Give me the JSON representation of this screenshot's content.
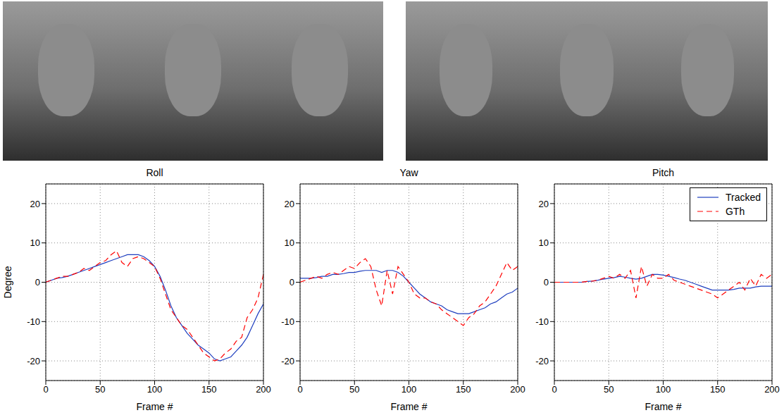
{
  "chart_data": [
    {
      "type": "line",
      "title": "Roll",
      "x_label": "Frame #",
      "y_label": "Degree",
      "x": [
        0,
        5,
        10,
        15,
        20,
        25,
        30,
        35,
        40,
        45,
        50,
        55,
        60,
        65,
        70,
        75,
        80,
        85,
        90,
        95,
        100,
        105,
        110,
        115,
        120,
        125,
        130,
        135,
        140,
        145,
        150,
        155,
        160,
        165,
        170,
        175,
        180,
        185,
        190,
        195,
        200
      ],
      "series": [
        {
          "name": "Tracked",
          "color": "#1f3fbf",
          "line_style": "solid",
          "values": [
            0,
            0.5,
            1,
            1.2,
            1.5,
            2,
            2.5,
            3,
            3.5,
            4,
            4.5,
            5,
            5.5,
            6,
            6.5,
            7,
            7,
            7,
            6.5,
            5.5,
            4,
            1.5,
            -2,
            -6,
            -9,
            -11,
            -13,
            -14.5,
            -16,
            -17,
            -18,
            -19.5,
            -20,
            -19.5,
            -19,
            -17.5,
            -16,
            -14,
            -11,
            -8,
            -5.5
          ]
        },
        {
          "name": "GTh",
          "color": "#ff0000",
          "line_style": "dashed",
          "values": [
            0,
            0.5,
            1,
            1.5,
            1.5,
            2,
            2.5,
            3.5,
            3,
            4,
            5,
            5.5,
            7,
            8,
            5,
            4,
            6,
            6.5,
            6,
            5,
            4,
            1,
            -3,
            -7,
            -9,
            -11,
            -12,
            -14,
            -16,
            -18,
            -19,
            -20,
            -19.5,
            -18,
            -17,
            -15,
            -14,
            -9,
            -7,
            -4,
            2
          ]
        }
      ],
      "xlim": [
        0,
        200
      ],
      "ylim": [
        -25,
        25
      ],
      "xticks": [
        0,
        50,
        100,
        150,
        200
      ],
      "yticks": [
        -20,
        -10,
        0,
        10,
        20
      ],
      "grid": true
    },
    {
      "type": "line",
      "title": "Yaw",
      "x_label": "Frame #",
      "x": [
        0,
        5,
        10,
        15,
        20,
        25,
        30,
        35,
        40,
        45,
        50,
        55,
        60,
        65,
        70,
        75,
        80,
        85,
        90,
        95,
        100,
        105,
        110,
        115,
        120,
        125,
        130,
        135,
        140,
        145,
        150,
        155,
        160,
        165,
        170,
        175,
        180,
        185,
        190,
        195,
        200
      ],
      "series": [
        {
          "name": "Tracked",
          "color": "#1f3fbf",
          "line_style": "solid",
          "values": [
            1,
            1,
            1,
            1.2,
            1.5,
            1.5,
            2,
            2,
            2.2,
            2.5,
            2.5,
            2.8,
            3,
            3,
            3,
            2.5,
            3,
            3,
            2.5,
            1.5,
            0,
            -1.5,
            -3,
            -4,
            -5,
            -5.5,
            -6,
            -7,
            -7.5,
            -8,
            -8,
            -8,
            -7.5,
            -7,
            -6.5,
            -5.5,
            -5,
            -4,
            -3,
            -2.5,
            -1.5
          ]
        },
        {
          "name": "GTh",
          "color": "#ff0000",
          "line_style": "dashed",
          "values": [
            0,
            0.5,
            1,
            1.5,
            1,
            2,
            2.5,
            2,
            3,
            4,
            3.5,
            5,
            6,
            4,
            -2,
            -6,
            3,
            -3,
            4,
            2,
            0,
            -3,
            -4,
            -4,
            -5,
            -5.5,
            -7,
            -8,
            -9,
            -10,
            -11,
            -9,
            -8,
            -6,
            -5,
            -3,
            -1,
            2,
            5,
            3,
            4
          ]
        }
      ],
      "xlim": [
        0,
        200
      ],
      "ylim": [
        -25,
        25
      ],
      "xticks": [
        0,
        50,
        100,
        150,
        200
      ],
      "yticks": [
        -20,
        -10,
        0,
        10,
        20
      ],
      "grid": true
    },
    {
      "type": "line",
      "title": "Pitch",
      "x_label": "Frame #",
      "legend": "upper right",
      "x": [
        0,
        5,
        10,
        15,
        20,
        25,
        30,
        35,
        40,
        45,
        50,
        55,
        60,
        65,
        70,
        75,
        80,
        85,
        90,
        95,
        100,
        105,
        110,
        115,
        120,
        125,
        130,
        135,
        140,
        145,
        150,
        155,
        160,
        165,
        170,
        175,
        180,
        185,
        190,
        195,
        200
      ],
      "series": [
        {
          "name": "Tracked",
          "color": "#1f3fbf",
          "line_style": "solid",
          "values": [
            0,
            0,
            0,
            0,
            0,
            0,
            0.2,
            0.3,
            0.5,
            0.8,
            1,
            1.2,
            1.5,
            1.3,
            1,
            0.8,
            1,
            1.5,
            2,
            2,
            1.8,
            1.5,
            1.2,
            0.8,
            0.5,
            0,
            -0.5,
            -1,
            -1.5,
            -2,
            -2,
            -2,
            -2,
            -1.8,
            -1.5,
            -1.5,
            -1.5,
            -1.2,
            -1,
            -1,
            -1
          ]
        },
        {
          "name": "GTh",
          "color": "#ff0000",
          "line_style": "dashed",
          "values": [
            0,
            0,
            0,
            0,
            0,
            0,
            0.2,
            0.3,
            0.5,
            1,
            1.5,
            1,
            2,
            1,
            3,
            -4,
            4,
            -1,
            2,
            1,
            1,
            2,
            0.5,
            0,
            -0.5,
            -1,
            -1.5,
            -2,
            -2.5,
            -3,
            -4,
            -3,
            -2,
            -1,
            0,
            -2,
            1,
            -1,
            2,
            1,
            2
          ]
        }
      ],
      "xlim": [
        0,
        200
      ],
      "ylim": [
        -25,
        25
      ],
      "xticks": [
        0,
        50,
        100,
        150,
        200
      ],
      "yticks": [
        -20,
        -10,
        0,
        10,
        20
      ],
      "grid": true
    }
  ]
}
